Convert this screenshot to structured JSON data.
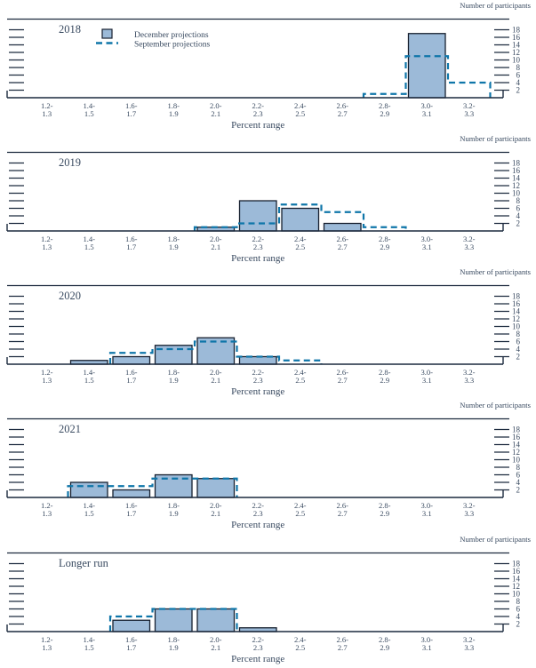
{
  "figure_note": "Distribution histograms, December vs September projections",
  "colors": {
    "bar_fill": "#9cbad8",
    "bar_stroke": "#17202f",
    "september_line": "#0f76a9",
    "axis": "#1c2a3e",
    "text": "#394a60",
    "background": "#ffffff"
  },
  "chart_data": {
    "type": "bar",
    "ylabel": "Number of participants",
    "xlabel": "Percent range",
    "yticks": [
      2,
      4,
      6,
      8,
      10,
      12,
      14,
      16,
      18
    ],
    "ylim": [
      0,
      19
    ],
    "grid": false,
    "legend_position": "top-left-first-panel",
    "legend": [
      {
        "name": "December projections",
        "style": "filled-bar"
      },
      {
        "name": "September projections",
        "style": "dashed-line"
      }
    ],
    "bins": [
      "1.2-1.3",
      "1.4-1.5",
      "1.6-1.7",
      "1.8-1.9",
      "2.0-2.1",
      "2.2-2.3",
      "2.4-2.5",
      "2.6-2.7",
      "2.8-2.9",
      "3.0-3.1",
      "3.2-3.3"
    ],
    "bin_labels_line1": [
      "1.2-",
      "1.4-",
      "1.6-",
      "1.8-",
      "2.0-",
      "2.2-",
      "2.4-",
      "2.6-",
      "2.8-",
      "3.0-",
      "3.2-"
    ],
    "bin_labels_line2": [
      "1.3",
      "1.5",
      "1.7",
      "1.9",
      "2.1",
      "2.3",
      "2.5",
      "2.7",
      "2.9",
      "3.1",
      "3.3"
    ],
    "panels": [
      {
        "title": "2018",
        "series": [
          {
            "name": "December projections",
            "values": [
              0,
              0,
              0,
              0,
              0,
              0,
              0,
              0,
              0,
              17,
              0
            ]
          },
          {
            "name": "September projections",
            "values": [
              0,
              0,
              0,
              0,
              0,
              0,
              0,
              0,
              1,
              11,
              4
            ]
          }
        ]
      },
      {
        "title": "2019",
        "series": [
          {
            "name": "December projections",
            "values": [
              0,
              0,
              0,
              0,
              1,
              8,
              6,
              2,
              0,
              0,
              0
            ]
          },
          {
            "name": "September projections",
            "values": [
              0,
              0,
              0,
              0,
              1,
              2,
              7,
              5,
              1,
              0,
              0
            ]
          }
        ]
      },
      {
        "title": "2020",
        "series": [
          {
            "name": "December projections",
            "values": [
              0,
              1,
              2,
              5,
              7,
              2,
              0,
              0,
              0,
              0,
              0
            ]
          },
          {
            "name": "September projections",
            "values": [
              0,
              0,
              3,
              4,
              6,
              2,
              1,
              0,
              0,
              0,
              0
            ]
          }
        ]
      },
      {
        "title": "2021",
        "series": [
          {
            "name": "December projections",
            "values": [
              0,
              4,
              2,
              6,
              5,
              0,
              0,
              0,
              0,
              0,
              0
            ]
          },
          {
            "name": "September projections",
            "values": [
              0,
              3,
              3,
              5,
              5,
              0,
              0,
              0,
              0,
              0,
              0
            ]
          }
        ]
      },
      {
        "title": "Longer run",
        "series": [
          {
            "name": "December projections",
            "values": [
              0,
              0,
              3,
              6,
              6,
              1,
              0,
              0,
              0,
              0,
              0
            ]
          },
          {
            "name": "September projections",
            "values": [
              0,
              0,
              4,
              6,
              6,
              0,
              0,
              0,
              0,
              0,
              0
            ]
          }
        ]
      }
    ]
  }
}
